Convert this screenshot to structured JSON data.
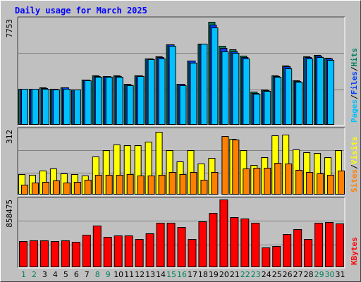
{
  "title": "Daily usage for March 2025",
  "colors": {
    "background": "#c0c0c0",
    "plot_background": "#c0c0c0",
    "hits": "#00805c",
    "files": "#0040ff",
    "pages": "#00c0ff",
    "visits": "#ffff00",
    "sites": "#ff8000",
    "kbytes": "#ff0000",
    "weekend_label": "#00805c",
    "weekday_label": "#000000",
    "title": "#0000ff"
  },
  "chart_data": [
    {
      "type": "bar",
      "panel": "hits-files-pages",
      "ymax_label": "7753",
      "ylim": [
        0,
        7753
      ],
      "legend": [
        "Pages",
        "Files",
        "Hits"
      ],
      "legend_colors": [
        "#00c0ff",
        "#0040ff",
        "#00805c"
      ],
      "categories": [
        "1",
        "2",
        "3",
        "4",
        "5",
        "6",
        "7",
        "8",
        "9",
        "10",
        "11",
        "12",
        "13",
        "14",
        "15",
        "16",
        "17",
        "18",
        "19",
        "20",
        "21",
        "22",
        "23",
        "24",
        "25",
        "26",
        "27",
        "28",
        "29",
        "30",
        "31"
      ],
      "series": [
        {
          "name": "Hits",
          "values": [
            2650,
            2660,
            2720,
            2650,
            2760,
            2590,
            3300,
            3600,
            3560,
            3610,
            2980,
            3620,
            4870,
            5010,
            5900,
            3000,
            4700,
            5930,
            7530,
            5790,
            5530,
            5090,
            2420,
            2610,
            3620,
            4340,
            3240,
            5000,
            5110,
            4900,
            0
          ]
        },
        {
          "name": "Files",
          "values": [
            2650,
            2660,
            2700,
            2640,
            2740,
            2580,
            3300,
            3580,
            3550,
            3590,
            2960,
            3600,
            4850,
            4980,
            5870,
            2990,
            4680,
            5900,
            7350,
            5630,
            5380,
            4960,
            2320,
            2550,
            3590,
            4310,
            3230,
            4980,
            5080,
            4850,
            0
          ]
        },
        {
          "name": "Pages",
          "values": [
            2650,
            2640,
            2650,
            2590,
            2650,
            2560,
            3260,
            3510,
            3520,
            3540,
            2890,
            3570,
            4810,
            4840,
            5810,
            2900,
            4570,
            5920,
            7150,
            5350,
            5250,
            4850,
            2250,
            2500,
            3520,
            4160,
            3130,
            4870,
            4980,
            4760,
            0
          ]
        }
      ]
    },
    {
      "type": "bar",
      "panel": "visits-sites",
      "ymax_label": "312",
      "ylim": [
        0,
        312
      ],
      "legend": [
        "Sites",
        "Visits"
      ],
      "legend_colors": [
        "#ff8000",
        "#ffff00"
      ],
      "categories": [
        "1",
        "2",
        "3",
        "4",
        "5",
        "6",
        "7",
        "8",
        "9",
        "10",
        "11",
        "12",
        "13",
        "14",
        "15",
        "16",
        "17",
        "18",
        "19",
        "20",
        "21",
        "22",
        "23",
        "24",
        "25",
        "26",
        "27",
        "28",
        "29",
        "30",
        "31"
      ],
      "series": [
        {
          "name": "Visits",
          "values": [
            100,
            96,
            116,
            127,
            102,
            100,
            90,
            183,
            214,
            240,
            238,
            236,
            256,
            302,
            214,
            158,
            214,
            150,
            178,
            0,
            268,
            214,
            144,
            180,
            284,
            287,
            218,
            204,
            200,
            180,
            212
          ]
        },
        {
          "name": "Sites",
          "values": [
            46,
            56,
            60,
            68,
            58,
            60,
            72,
            94,
            96,
            96,
            100,
            90,
            92,
            96,
            108,
            98,
            108,
            70,
            108,
            280,
            266,
            124,
            128,
            130,
            154,
            150,
            120,
            110,
            103,
            96,
            114
          ]
        }
      ]
    },
    {
      "type": "bar",
      "panel": "kbytes",
      "ymax_label": "858475",
      "ylim": [
        0,
        858475
      ],
      "legend": [
        "KBytes"
      ],
      "legend_colors": [
        "#ff0000"
      ],
      "categories": [
        "1",
        "2",
        "3",
        "4",
        "5",
        "6",
        "7",
        "8",
        "9",
        "10",
        "11",
        "12",
        "13",
        "14",
        "15",
        "16",
        "17",
        "18",
        "19",
        "20",
        "21",
        "22",
        "23",
        "24",
        "25",
        "26",
        "27",
        "28",
        "29",
        "30",
        "31"
      ],
      "series": [
        {
          "name": "KBytes",
          "values": [
            331000,
            340000,
            342000,
            332000,
            338000,
            326000,
            415000,
            532000,
            383000,
            398000,
            402000,
            354000,
            433000,
            560000,
            561000,
            508000,
            355000,
            580000,
            691000,
            858000,
            631000,
            621000,
            560000,
            253000,
            266000,
            416000,
            481000,
            357000,
            563000,
            569000,
            553000
          ]
        }
      ]
    }
  ],
  "x_labels": [
    {
      "text": "1",
      "weekend": true
    },
    {
      "text": "2",
      "weekend": true
    },
    {
      "text": "3",
      "weekend": false
    },
    {
      "text": "4",
      "weekend": false
    },
    {
      "text": "5",
      "weekend": false
    },
    {
      "text": "6",
      "weekend": false
    },
    {
      "text": "7",
      "weekend": false
    },
    {
      "text": "8",
      "weekend": true
    },
    {
      "text": "9",
      "weekend": true
    },
    {
      "text": "10",
      "weekend": false
    },
    {
      "text": "11",
      "weekend": false
    },
    {
      "text": "12",
      "weekend": false
    },
    {
      "text": "13",
      "weekend": false
    },
    {
      "text": "14",
      "weekend": false
    },
    {
      "text": "15",
      "weekend": true
    },
    {
      "text": "16",
      "weekend": true
    },
    {
      "text": "17",
      "weekend": false
    },
    {
      "text": "18",
      "weekend": false
    },
    {
      "text": "19",
      "weekend": false
    },
    {
      "text": "20",
      "weekend": false
    },
    {
      "text": "21",
      "weekend": false
    },
    {
      "text": "22",
      "weekend": true
    },
    {
      "text": "23",
      "weekend": true
    },
    {
      "text": "24",
      "weekend": false
    },
    {
      "text": "25",
      "weekend": false
    },
    {
      "text": "26",
      "weekend": false
    },
    {
      "text": "27",
      "weekend": false
    },
    {
      "text": "28",
      "weekend": false
    },
    {
      "text": "29",
      "weekend": true
    },
    {
      "text": "30",
      "weekend": true
    },
    {
      "text": "31",
      "weekend": false
    }
  ]
}
